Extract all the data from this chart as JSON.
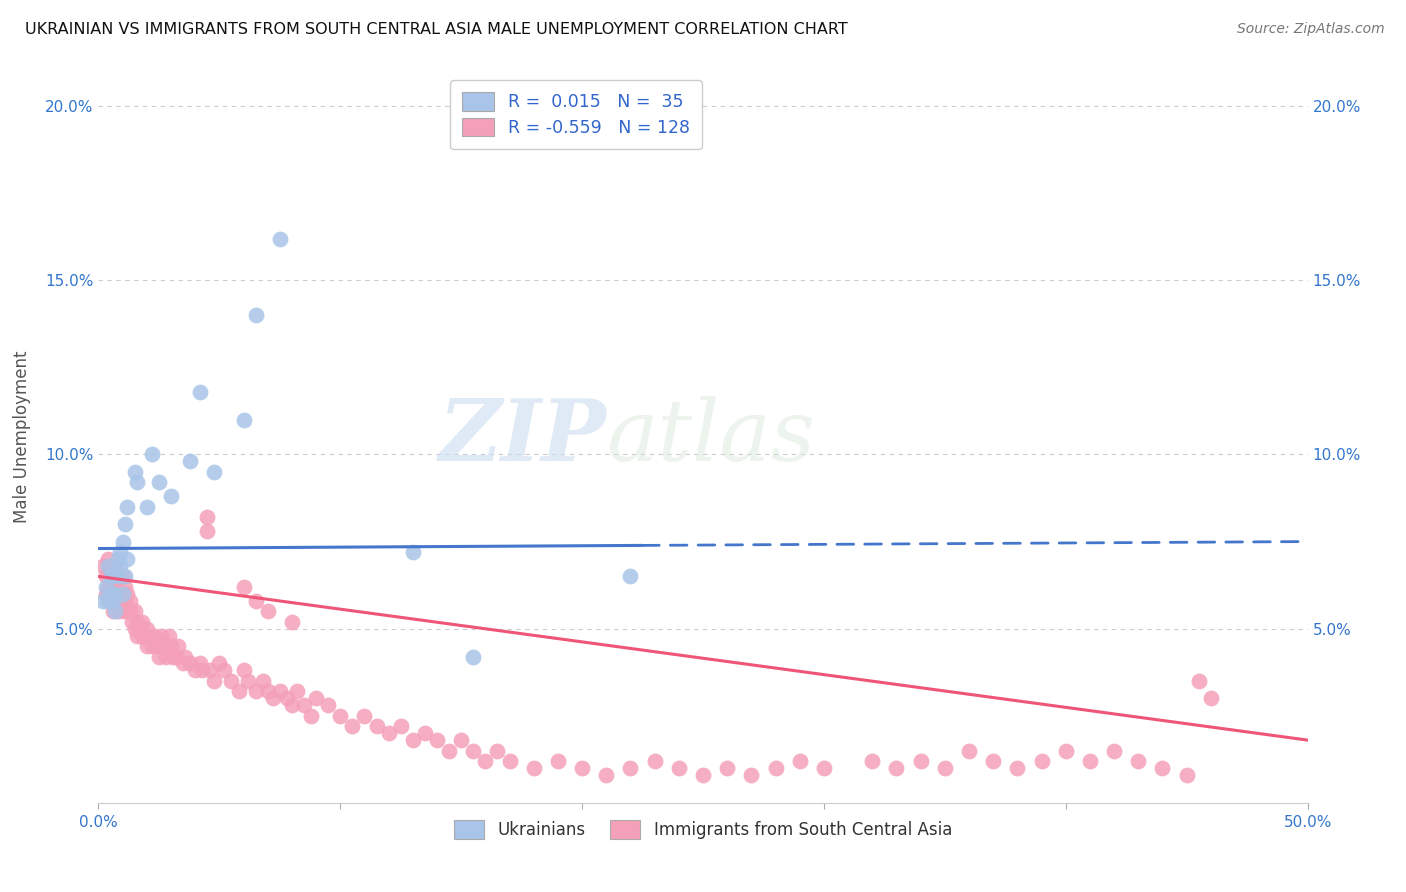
{
  "title": "UKRAINIAN VS IMMIGRANTS FROM SOUTH CENTRAL ASIA MALE UNEMPLOYMENT CORRELATION CHART",
  "source": "Source: ZipAtlas.com",
  "xlim": [
    0.0,
    0.5
  ],
  "ylim": [
    0.0,
    0.21
  ],
  "xlabel_ticks": [
    0.0,
    0.1,
    0.2,
    0.3,
    0.4,
    0.5
  ],
  "xlabel_tick_labels": [
    "0.0%",
    "",
    "",
    "",
    "",
    "50.0%"
  ],
  "ylabel_ticks": [
    0.0,
    0.05,
    0.1,
    0.15,
    0.2
  ],
  "ylabel_tick_labels": [
    "",
    "5.0%",
    "10.0%",
    "15.0%",
    "20.0%"
  ],
  "ukrainians_color": "#a8c4e8",
  "immigrants_color": "#f4a0b8",
  "line_blue": "#4477cc",
  "line_pink": "#ee5577",
  "R_blue": 0.015,
  "N_blue": 35,
  "R_pink": -0.559,
  "N_pink": 128,
  "legend_label_blue": "Ukrainians",
  "legend_label_pink": "Immigrants from South Central Asia",
  "ylabel": "Male Unemployment",
  "watermark_zip": "ZIP",
  "watermark_atlas": "atlas",
  "blue_line_x_start": 0.0,
  "blue_line_x_solid_end": 0.225,
  "blue_line_x_end": 0.5,
  "blue_line_y_start": 0.073,
  "blue_line_y_end": 0.075,
  "pink_line_x_start": 0.0,
  "pink_line_x_end": 0.5,
  "pink_line_y_start": 0.065,
  "pink_line_y_end": 0.018,
  "ukrainians_x": [
    0.002,
    0.003,
    0.004,
    0.004,
    0.005,
    0.005,
    0.006,
    0.006,
    0.007,
    0.007,
    0.008,
    0.008,
    0.009,
    0.009,
    0.01,
    0.01,
    0.011,
    0.011,
    0.012,
    0.012,
    0.015,
    0.016,
    0.02,
    0.022,
    0.025,
    0.03,
    0.038,
    0.042,
    0.048,
    0.06,
    0.065,
    0.075,
    0.13,
    0.155,
    0.22
  ],
  "ukrainians_y": [
    0.058,
    0.062,
    0.058,
    0.068,
    0.06,
    0.065,
    0.058,
    0.065,
    0.06,
    0.055,
    0.07,
    0.065,
    0.072,
    0.068,
    0.06,
    0.075,
    0.065,
    0.08,
    0.07,
    0.085,
    0.095,
    0.092,
    0.085,
    0.1,
    0.092,
    0.088,
    0.098,
    0.118,
    0.095,
    0.11,
    0.14,
    0.162,
    0.072,
    0.042,
    0.065
  ],
  "immigrants_x": [
    0.002,
    0.003,
    0.003,
    0.004,
    0.004,
    0.005,
    0.005,
    0.005,
    0.006,
    0.006,
    0.006,
    0.007,
    0.007,
    0.007,
    0.008,
    0.008,
    0.008,
    0.009,
    0.009,
    0.01,
    0.01,
    0.01,
    0.011,
    0.011,
    0.012,
    0.012,
    0.013,
    0.013,
    0.014,
    0.015,
    0.015,
    0.016,
    0.016,
    0.017,
    0.018,
    0.018,
    0.019,
    0.02,
    0.02,
    0.021,
    0.022,
    0.023,
    0.024,
    0.025,
    0.026,
    0.027,
    0.028,
    0.029,
    0.03,
    0.031,
    0.032,
    0.033,
    0.035,
    0.036,
    0.038,
    0.04,
    0.042,
    0.043,
    0.045,
    0.045,
    0.046,
    0.048,
    0.05,
    0.052,
    0.055,
    0.058,
    0.06,
    0.062,
    0.065,
    0.068,
    0.07,
    0.072,
    0.075,
    0.078,
    0.08,
    0.082,
    0.085,
    0.088,
    0.09,
    0.095,
    0.1,
    0.105,
    0.11,
    0.115,
    0.12,
    0.125,
    0.13,
    0.135,
    0.14,
    0.145,
    0.15,
    0.155,
    0.16,
    0.165,
    0.17,
    0.18,
    0.19,
    0.2,
    0.21,
    0.22,
    0.23,
    0.24,
    0.25,
    0.26,
    0.27,
    0.28,
    0.29,
    0.3,
    0.32,
    0.33,
    0.34,
    0.35,
    0.36,
    0.37,
    0.38,
    0.39,
    0.4,
    0.41,
    0.42,
    0.43,
    0.44,
    0.45,
    0.455,
    0.46,
    0.06,
    0.065,
    0.07,
    0.08
  ],
  "immigrants_y": [
    0.068,
    0.06,
    0.065,
    0.062,
    0.07,
    0.058,
    0.062,
    0.068,
    0.06,
    0.055,
    0.065,
    0.058,
    0.062,
    0.068,
    0.055,
    0.06,
    0.065,
    0.058,
    0.06,
    0.055,
    0.06,
    0.065,
    0.058,
    0.062,
    0.055,
    0.06,
    0.055,
    0.058,
    0.052,
    0.05,
    0.055,
    0.048,
    0.052,
    0.05,
    0.048,
    0.052,
    0.048,
    0.045,
    0.05,
    0.048,
    0.045,
    0.048,
    0.045,
    0.042,
    0.048,
    0.045,
    0.042,
    0.048,
    0.045,
    0.042,
    0.042,
    0.045,
    0.04,
    0.042,
    0.04,
    0.038,
    0.04,
    0.038,
    0.078,
    0.082,
    0.038,
    0.035,
    0.04,
    0.038,
    0.035,
    0.032,
    0.038,
    0.035,
    0.032,
    0.035,
    0.032,
    0.03,
    0.032,
    0.03,
    0.028,
    0.032,
    0.028,
    0.025,
    0.03,
    0.028,
    0.025,
    0.022,
    0.025,
    0.022,
    0.02,
    0.022,
    0.018,
    0.02,
    0.018,
    0.015,
    0.018,
    0.015,
    0.012,
    0.015,
    0.012,
    0.01,
    0.012,
    0.01,
    0.008,
    0.01,
    0.012,
    0.01,
    0.008,
    0.01,
    0.008,
    0.01,
    0.012,
    0.01,
    0.012,
    0.01,
    0.012,
    0.01,
    0.015,
    0.012,
    0.01,
    0.012,
    0.015,
    0.012,
    0.015,
    0.012,
    0.01,
    0.008,
    0.035,
    0.03,
    0.062,
    0.058,
    0.055,
    0.052
  ]
}
